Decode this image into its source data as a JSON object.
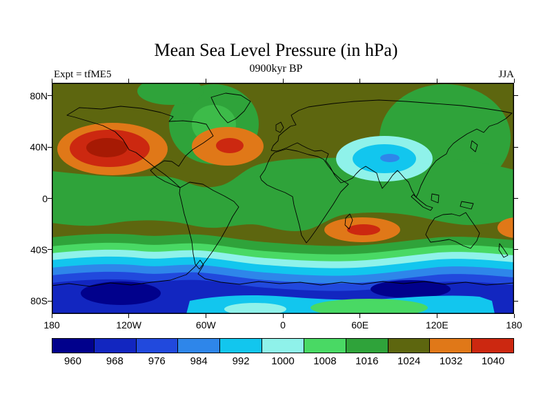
{
  "figure": {
    "title": "Mean Sea Level Pressure (in hPa)",
    "subtitle": "0900kyr BP",
    "left_annotation": "Expt = tfME5",
    "right_annotation": "JJA"
  },
  "axes": {
    "lat_labels": [
      "80N",
      "40N",
      "0",
      "40S",
      "80S"
    ],
    "lon_labels": [
      "180",
      "120W",
      "60W",
      "0",
      "60E",
      "120E",
      "180"
    ]
  },
  "colorbar": {
    "labels": [
      "960",
      "968",
      "976",
      "984",
      "992",
      "1000",
      "1008",
      "1016",
      "1024",
      "1032",
      "1040"
    ],
    "colors": [
      "#01018c",
      "#1226c0",
      "#2149dd",
      "#2e86ea",
      "#12c6ee",
      "#8ff2ea",
      "#49d964",
      "#2fa33a",
      "#5d660f",
      "#e07818",
      "#cc2810"
    ]
  },
  "chart_data": {
    "type": "heatmap",
    "variable": "Mean Sea Level Pressure",
    "units": "hPa",
    "experiment": "tfME5",
    "time_slice": "0900kyr BP",
    "season": "JJA",
    "projection": "cylindrical equidistant world map with coastlines",
    "lon_range": [
      -180,
      180
    ],
    "lat_range": [
      -90,
      90
    ],
    "contour_levels": [
      960,
      968,
      976,
      984,
      992,
      1000,
      1008,
      1016,
      1024,
      1032,
      1040
    ],
    "features": [
      {
        "name": "North Pacific subtropical high",
        "approx_lon": "150W",
        "approx_lat": "38N",
        "value_hpa": "1040+"
      },
      {
        "name": "North Atlantic / eastern North America high",
        "approx_lon": "45W",
        "approx_lat": "40N",
        "value_hpa": "1032-1040"
      },
      {
        "name": "South Indian Ocean high",
        "approx_lon": "60E",
        "approx_lat": "25S",
        "value_hpa": "1032"
      },
      {
        "name": "Tibetan Plateau / South Asia thermal low",
        "approx_lon": "85E",
        "approx_lat": "33N",
        "value_hpa": "992-1000"
      },
      {
        "name": "Circumpolar Antarctic trough",
        "approx_lat": "55S-70S",
        "value_hpa": "960-984",
        "note": "deepest closed lows near 150W,62S and 115E,60S"
      },
      {
        "name": "Tropical belt",
        "approx_lat": "30N-25S",
        "value_hpa": "1008-1016"
      },
      {
        "name": "Mid-latitude background field",
        "value_hpa": "1016-1024"
      },
      {
        "name": "Antarctic interior relative high band",
        "approx_lat": "80S-90S",
        "value_hpa": "1000-1016"
      }
    ]
  }
}
